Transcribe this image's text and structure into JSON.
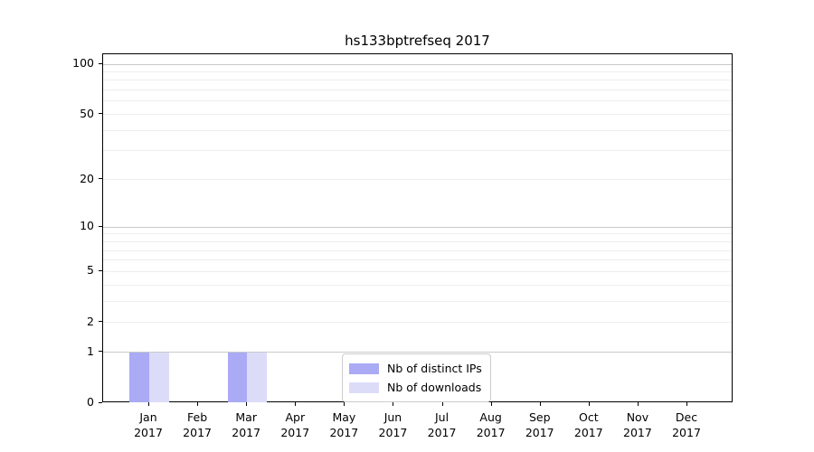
{
  "title": "hs133bptrefseq 2017",
  "chart_data": {
    "type": "bar",
    "title": "hs133bptrefseq 2017",
    "categories": [
      "Jan 2017",
      "Feb 2017",
      "Mar 2017",
      "Apr 2017",
      "May 2017",
      "Jun 2017",
      "Jul 2017",
      "Aug 2017",
      "Sep 2017",
      "Oct 2017",
      "Nov 2017",
      "Dec 2017"
    ],
    "series": [
      {
        "name": "Nb of distinct IPs",
        "color": "#aaaaf5",
        "values": [
          1,
          0,
          1,
          0,
          0,
          0,
          0,
          0,
          0,
          0,
          0,
          0
        ]
      },
      {
        "name": "Nb of downloads",
        "color": "#dcdcf9",
        "values": [
          1,
          0,
          1,
          0,
          0,
          0,
          0,
          0,
          0,
          0,
          0,
          0
        ]
      }
    ],
    "xlabel": "",
    "ylabel": "",
    "yscale": "log1p",
    "ylim": [
      0,
      114
    ],
    "yticks": [
      0,
      1,
      2,
      5,
      10,
      20,
      50,
      100
    ],
    "ytick_major_gridlines": [
      1,
      10,
      100
    ],
    "grid": "on",
    "legend_position": "lower center"
  },
  "colors": {
    "background": "#ffffff",
    "spine": "#000000",
    "grid_major": "#c9c9c9",
    "grid_minor": "#ededed",
    "text": "#000000",
    "legend_border": "#cccccc"
  }
}
